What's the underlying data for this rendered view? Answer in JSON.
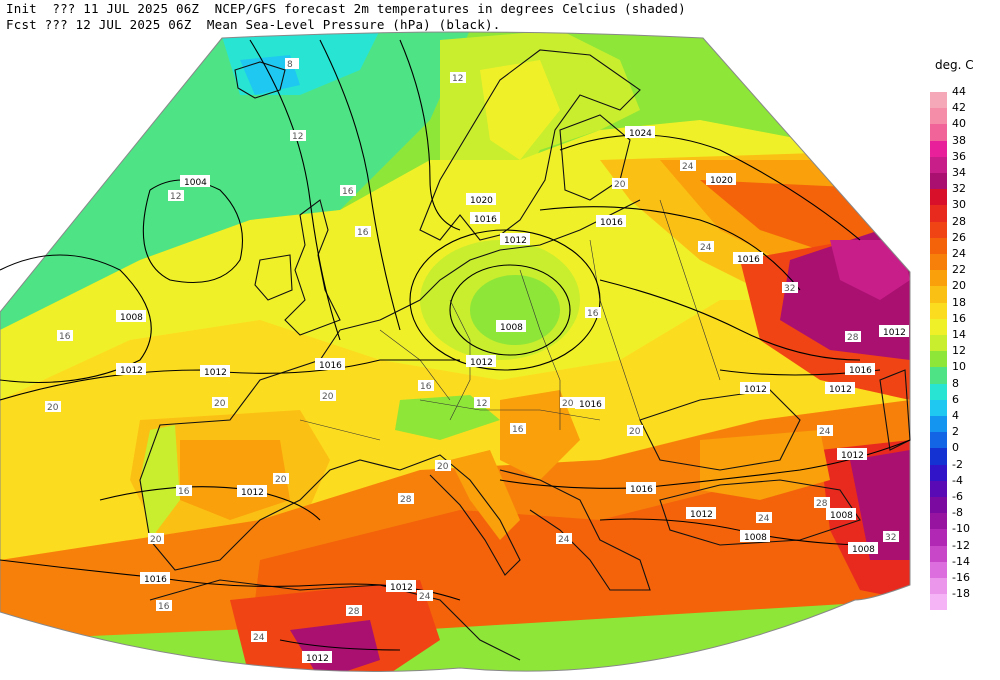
{
  "header": {
    "line1": "Init  ??? 11 JUL 2025 06Z  NCEP/GFS forecast 2m temperatures in degrees Celcius (shaded)",
    "line2": "Fcst ??? 12 JUL 2025 06Z  Mean Sea-Level Pressure (hPa) (black)."
  },
  "legend": {
    "title": "deg. C",
    "entries": [
      {
        "label": "44",
        "color": "#f5a8b8"
      },
      {
        "label": "42",
        "color": "#f58ca8"
      },
      {
        "label": "40",
        "color": "#f0649a"
      },
      {
        "label": "38",
        "color": "#e8209a"
      },
      {
        "label": "36",
        "color": "#c81e8a"
      },
      {
        "label": "34",
        "color": "#aa1070"
      },
      {
        "label": "32",
        "color": "#d8102a"
      },
      {
        "label": "30",
        "color": "#e82a1e"
      },
      {
        "label": "28",
        "color": "#f04414"
      },
      {
        "label": "26",
        "color": "#f4620a"
      },
      {
        "label": "24",
        "color": "#f7800a"
      },
      {
        "label": "22",
        "color": "#f9a00a"
      },
      {
        "label": "20",
        "color": "#fbc014"
      },
      {
        "label": "18",
        "color": "#fcdc1e"
      },
      {
        "label": "16",
        "color": "#f0f028"
      },
      {
        "label": "14",
        "color": "#c8ee2e"
      },
      {
        "label": "12",
        "color": "#8ee638"
      },
      {
        "label": "10",
        "color": "#4ee486"
      },
      {
        "label": "8",
        "color": "#28e4d2"
      },
      {
        "label": "6",
        "color": "#1ec8f0"
      },
      {
        "label": "4",
        "color": "#1496f0"
      },
      {
        "label": "2",
        "color": "#1464e6"
      },
      {
        "label": "0",
        "color": "#1432d2"
      },
      {
        "label": "-2",
        "color": "#3214c8"
      },
      {
        "label": "-4",
        "color": "#5a0ab4"
      },
      {
        "label": "-6",
        "color": "#7a0aa0"
      },
      {
        "label": "-8",
        "color": "#9614a0"
      },
      {
        "label": "-10",
        "color": "#b028b4"
      },
      {
        "label": "-12",
        "color": "#c846c8"
      },
      {
        "label": "-14",
        "color": "#dc6ede"
      },
      {
        "label": "-16",
        "color": "#eb96eb"
      },
      {
        "label": "-18",
        "color": "#f5b4f5"
      }
    ]
  },
  "map": {
    "isobar_labels": [
      "1004",
      "1008",
      "1012",
      "1016",
      "1020",
      "1024"
    ],
    "pressure_labels": [
      {
        "text": "1004"
      },
      {
        "text": "1008"
      },
      {
        "text": "1012"
      },
      {
        "text": "1012"
      },
      {
        "text": "1016"
      },
      {
        "text": "1020"
      },
      {
        "text": "1016"
      },
      {
        "text": "1012"
      },
      {
        "text": "1008"
      },
      {
        "text": "1012"
      },
      {
        "text": "1016"
      },
      {
        "text": "1012"
      },
      {
        "text": "1024"
      },
      {
        "text": "1020"
      },
      {
        "text": "1016"
      },
      {
        "text": "1016"
      },
      {
        "text": "1012"
      },
      {
        "text": "1016"
      },
      {
        "text": "1012"
      },
      {
        "text": "1016"
      },
      {
        "text": "1012"
      },
      {
        "text": "1012"
      },
      {
        "text": "1012"
      },
      {
        "text": "1008"
      },
      {
        "text": "1008"
      },
      {
        "text": "1012"
      },
      {
        "text": "1016"
      },
      {
        "text": "1012"
      },
      {
        "text": "1008"
      }
    ],
    "temp_labels": [
      {
        "text": "8"
      },
      {
        "text": "12"
      },
      {
        "text": "12"
      },
      {
        "text": "12"
      },
      {
        "text": "16"
      },
      {
        "text": "16"
      },
      {
        "text": "16"
      },
      {
        "text": "20"
      },
      {
        "text": "20"
      },
      {
        "text": "20"
      },
      {
        "text": "20"
      },
      {
        "text": "16"
      },
      {
        "text": "12"
      },
      {
        "text": "16"
      },
      {
        "text": "20"
      },
      {
        "text": "24"
      },
      {
        "text": "24"
      },
      {
        "text": "28"
      },
      {
        "text": "24"
      },
      {
        "text": "24"
      },
      {
        "text": "28"
      },
      {
        "text": "32"
      },
      {
        "text": "28"
      },
      {
        "text": "24"
      },
      {
        "text": "16"
      },
      {
        "text": "20"
      },
      {
        "text": "24"
      },
      {
        "text": "20"
      },
      {
        "text": "20"
      },
      {
        "text": "28"
      },
      {
        "text": "32"
      },
      {
        "text": "16"
      },
      {
        "text": "20"
      },
      {
        "text": "16"
      },
      {
        "text": "24"
      }
    ]
  }
}
